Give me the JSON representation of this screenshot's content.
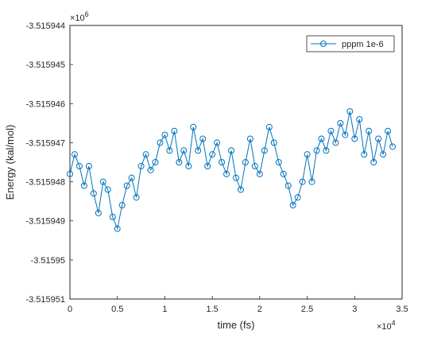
{
  "chart_data": {
    "type": "line",
    "title": "",
    "xlabel": "time (fs)",
    "ylabel": "Energy (kal/mol)",
    "x_exponent_label": "×10",
    "x_exponent_power": "4",
    "y_exponent_label": "×10",
    "y_exponent_power": "6",
    "xlim": [
      0,
      35000
    ],
    "ylim": [
      -3515951,
      -3515944
    ],
    "x_ticks": [
      0,
      5000,
      10000,
      15000,
      20000,
      25000,
      30000,
      35000
    ],
    "x_tick_labels": [
      "0",
      "0.5",
      "1",
      "1.5",
      "2",
      "2.5",
      "3",
      "3.5"
    ],
    "y_ticks": [
      -3515944,
      -3515945,
      -3515946,
      -3515947,
      -3515948,
      -3515949,
      -3515950,
      -3515951
    ],
    "y_tick_labels": [
      "-3.515944",
      "-3.515945",
      "-3.515946",
      "-3.515947",
      "-3.515948",
      "-3.515949",
      "-3.51595",
      "-3.515951"
    ],
    "grid": false,
    "legend_position": "top-right",
    "series": [
      {
        "name": "pppm 1e-6",
        "color": "#0072BD",
        "marker": "circle",
        "x": [
          0,
          500,
          1000,
          1500,
          2000,
          2500,
          3000,
          3500,
          4000,
          4500,
          5000,
          5500,
          6000,
          6500,
          7000,
          7500,
          8000,
          8500,
          9000,
          9500,
          10000,
          10500,
          11000,
          11500,
          12000,
          12500,
          13000,
          13500,
          14000,
          14500,
          15000,
          15500,
          16000,
          16500,
          17000,
          17500,
          18000,
          18500,
          19000,
          19500,
          20000,
          20500,
          21000,
          21500,
          22000,
          22500,
          23000,
          23500,
          24000,
          24500,
          25000,
          25500,
          26000,
          26500,
          27000,
          27500,
          28000,
          28500,
          29000,
          29500,
          30000,
          30500,
          31000,
          31500,
          32000,
          32500,
          33000,
          33500,
          34000
        ],
        "values": [
          -3515947.8,
          -3515947.3,
          -3515947.6,
          -3515948.1,
          -3515947.6,
          -3515948.3,
          -3515948.8,
          -3515948.0,
          -3515948.2,
          -3515948.9,
          -3515949.2,
          -3515948.6,
          -3515948.1,
          -3515947.9,
          -3515948.4,
          -3515947.6,
          -3515947.3,
          -3515947.7,
          -3515947.5,
          -3515947.0,
          -3515946.8,
          -3515947.2,
          -3515946.7,
          -3515947.5,
          -3515947.2,
          -3515947.6,
          -3515946.6,
          -3515947.2,
          -3515946.9,
          -3515947.6,
          -3515947.3,
          -3515947.0,
          -3515947.5,
          -3515947.8,
          -3515947.2,
          -3515947.9,
          -3515948.2,
          -3515947.5,
          -3515946.9,
          -3515947.6,
          -3515947.8,
          -3515947.2,
          -3515946.6,
          -3515947.0,
          -3515947.5,
          -3515947.8,
          -3515948.1,
          -3515948.6,
          -3515948.4,
          -3515948.0,
          -3515947.3,
          -3515948.0,
          -3515947.2,
          -3515946.9,
          -3515947.2,
          -3515946.7,
          -3515947.0,
          -3515946.5,
          -3515946.8,
          -3515946.2,
          -3515946.9,
          -3515946.4,
          -3515947.3,
          -3515946.7,
          -3515947.5,
          -3515946.9,
          -3515947.3,
          -3515946.7,
          -3515947.1
        ]
      }
    ]
  }
}
